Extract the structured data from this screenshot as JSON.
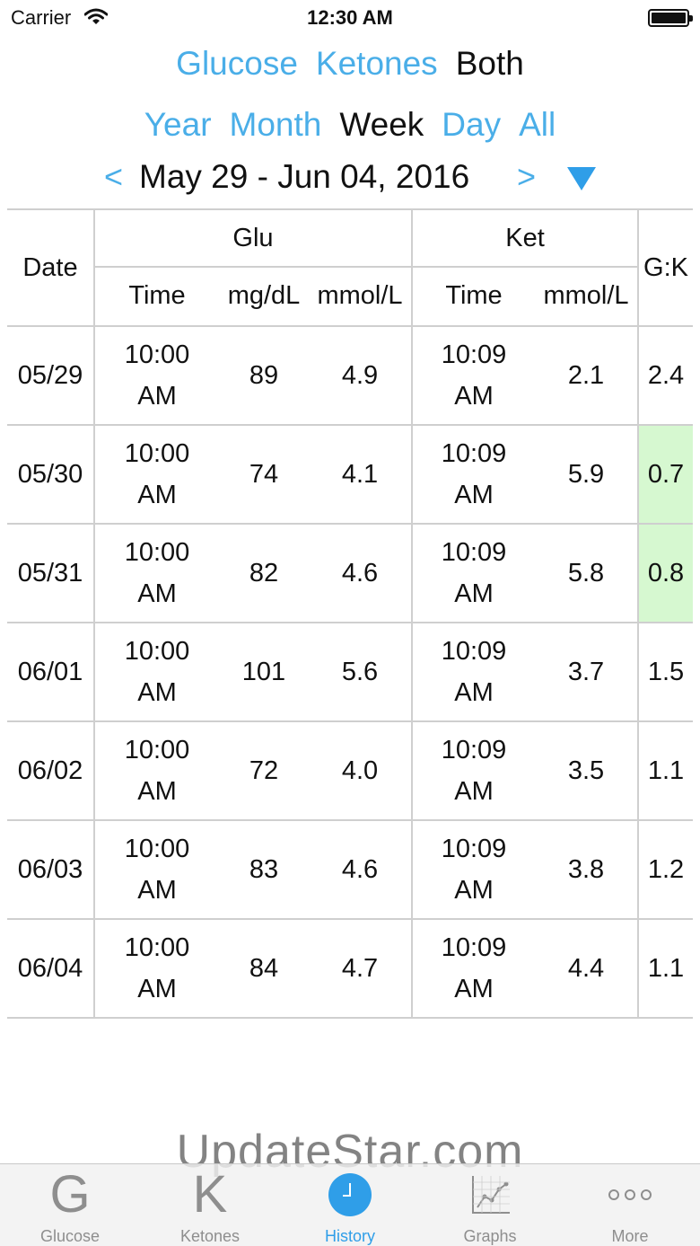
{
  "status_bar": {
    "carrier": "Carrier",
    "time": "12:30 AM"
  },
  "mode_tabs": [
    {
      "label": "Glucose",
      "active": false
    },
    {
      "label": "Ketones",
      "active": false
    },
    {
      "label": "Both",
      "active": true
    }
  ],
  "period_tabs": [
    {
      "label": "Year",
      "active": false
    },
    {
      "label": "Month",
      "active": false
    },
    {
      "label": "Week",
      "active": true
    },
    {
      "label": "Day",
      "active": false
    },
    {
      "label": "All",
      "active": false
    }
  ],
  "range": {
    "prev": "<",
    "text": "May 29 - Jun 04, 2016",
    "next": ">"
  },
  "table": {
    "headers": {
      "date": "Date",
      "glu": "Glu",
      "ket": "Ket",
      "gk": "G:K",
      "glu_time": "Time",
      "glu_mgdl": "mg/dL",
      "glu_mmol": "mmol/L",
      "ket_time": "Time",
      "ket_mmol": "mmol/L"
    },
    "rows": [
      {
        "date": "05/29",
        "glu_time": "10:00",
        "glu_ampm": "AM",
        "mgdl": "89",
        "glu_mmol": "4.9",
        "ket_time": "10:09",
        "ket_ampm": "AM",
        "ket_mmol": "2.1",
        "gk": "2.4",
        "highlight": false
      },
      {
        "date": "05/30",
        "glu_time": "10:00",
        "glu_ampm": "AM",
        "mgdl": "74",
        "glu_mmol": "4.1",
        "ket_time": "10:09",
        "ket_ampm": "AM",
        "ket_mmol": "5.9",
        "gk": "0.7",
        "highlight": true
      },
      {
        "date": "05/31",
        "glu_time": "10:00",
        "glu_ampm": "AM",
        "mgdl": "82",
        "glu_mmol": "4.6",
        "ket_time": "10:09",
        "ket_ampm": "AM",
        "ket_mmol": "5.8",
        "gk": "0.8",
        "highlight": true
      },
      {
        "date": "06/01",
        "glu_time": "10:00",
        "glu_ampm": "AM",
        "mgdl": "101",
        "glu_mmol": "5.6",
        "ket_time": "10:09",
        "ket_ampm": "AM",
        "ket_mmol": "3.7",
        "gk": "1.5",
        "highlight": false
      },
      {
        "date": "06/02",
        "glu_time": "10:00",
        "glu_ampm": "AM",
        "mgdl": "72",
        "glu_mmol": "4.0",
        "ket_time": "10:09",
        "ket_ampm": "AM",
        "ket_mmol": "3.5",
        "gk": "1.1",
        "highlight": false
      },
      {
        "date": "06/03",
        "glu_time": "10:00",
        "glu_ampm": "AM",
        "mgdl": "83",
        "glu_mmol": "4.6",
        "ket_time": "10:09",
        "ket_ampm": "AM",
        "ket_mmol": "3.8",
        "gk": "1.2",
        "highlight": false
      },
      {
        "date": "06/04",
        "glu_time": "10:00",
        "glu_ampm": "AM",
        "mgdl": "84",
        "glu_mmol": "4.7",
        "ket_time": "10:09",
        "ket_ampm": "AM",
        "ket_mmol": "4.4",
        "gk": "1.1",
        "highlight": false
      }
    ],
    "highlight_color": "#d6f8d0"
  },
  "watermark": "UpdateStar.com",
  "tab_bar": {
    "active_color": "#2f9ee8",
    "items": [
      {
        "label": "Glucose",
        "icon": "G",
        "active": false
      },
      {
        "label": "Ketones",
        "icon": "K",
        "active": false
      },
      {
        "label": "History",
        "icon": "clock-icon",
        "active": true
      },
      {
        "label": "Graphs",
        "icon": "graph-icon",
        "active": false
      },
      {
        "label": "More",
        "icon": "more-dots-icon",
        "active": false
      }
    ]
  }
}
